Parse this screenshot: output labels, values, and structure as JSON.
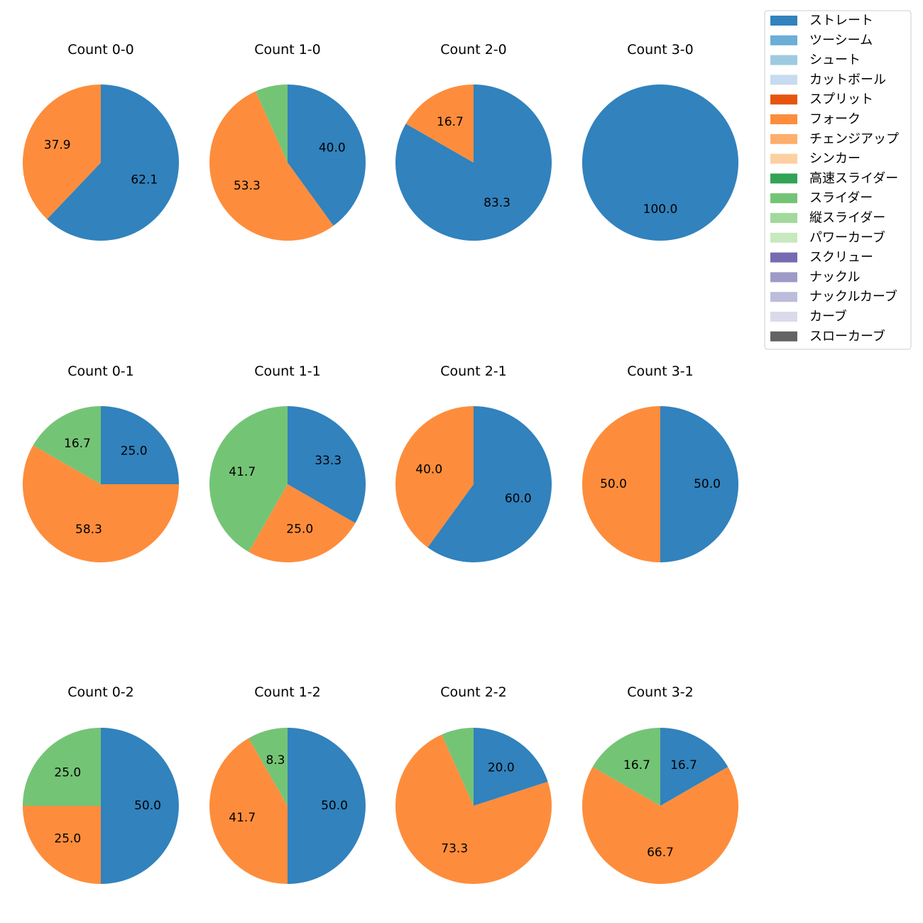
{
  "chart_data": {
    "type": "pie",
    "layout": "grid",
    "rows": 3,
    "cols": 4,
    "legend": {
      "location": "top-right",
      "entries": [
        {
          "name": "ストレート",
          "color": "#3182bd"
        },
        {
          "name": "ツーシーム",
          "color": "#6baed6"
        },
        {
          "name": "シュート",
          "color": "#9ecae1"
        },
        {
          "name": "カットボール",
          "color": "#c6dbef"
        },
        {
          "name": "スプリット",
          "color": "#e6550d"
        },
        {
          "name": "フォーク",
          "color": "#fd8d3c"
        },
        {
          "name": "チェンジアップ",
          "color": "#fdae6b"
        },
        {
          "name": "シンカー",
          "color": "#fdd0a2"
        },
        {
          "name": "高速スライダー",
          "color": "#31a354"
        },
        {
          "name": "スライダー",
          "color": "#74c476"
        },
        {
          "name": "縦スライダー",
          "color": "#a1d99b"
        },
        {
          "name": "パワーカーブ",
          "color": "#c7e9c0"
        },
        {
          "name": "スクリュー",
          "color": "#756bb1"
        },
        {
          "name": "ナックル",
          "color": "#9e9ac8"
        },
        {
          "name": "ナックルカーブ",
          "color": "#bcbddc"
        },
        {
          "name": "カーブ",
          "color": "#dadaeb"
        },
        {
          "name": "スローカーブ",
          "color": "#636363"
        }
      ]
    },
    "charts": [
      {
        "title": "Count 0-0",
        "slices": [
          {
            "pitch": "ストレート",
            "value": 62.1,
            "label": "62.1"
          },
          {
            "pitch": "フォーク",
            "value": 37.9,
            "label": "37.9"
          }
        ]
      },
      {
        "title": "Count 1-0",
        "slices": [
          {
            "pitch": "ストレート",
            "value": 40.0,
            "label": "40.0"
          },
          {
            "pitch": "フォーク",
            "value": 53.3,
            "label": "53.3"
          },
          {
            "pitch": "スライダー",
            "value": 6.7,
            "label": ""
          }
        ]
      },
      {
        "title": "Count 2-0",
        "slices": [
          {
            "pitch": "ストレート",
            "value": 83.3,
            "label": "83.3"
          },
          {
            "pitch": "フォーク",
            "value": 16.7,
            "label": "16.7"
          }
        ]
      },
      {
        "title": "Count 3-0",
        "slices": [
          {
            "pitch": "ストレート",
            "value": 100.0,
            "label": "100.0"
          }
        ]
      },
      {
        "title": "Count 0-1",
        "slices": [
          {
            "pitch": "ストレート",
            "value": 25.0,
            "label": "25.0"
          },
          {
            "pitch": "フォーク",
            "value": 58.3,
            "label": "58.3"
          },
          {
            "pitch": "スライダー",
            "value": 16.7,
            "label": "16.7"
          }
        ]
      },
      {
        "title": "Count 1-1",
        "slices": [
          {
            "pitch": "ストレート",
            "value": 33.3,
            "label": "33.3"
          },
          {
            "pitch": "フォーク",
            "value": 25.0,
            "label": "25.0"
          },
          {
            "pitch": "スライダー",
            "value": 41.7,
            "label": "41.7"
          }
        ]
      },
      {
        "title": "Count 2-1",
        "slices": [
          {
            "pitch": "ストレート",
            "value": 60.0,
            "label": "60.0"
          },
          {
            "pitch": "フォーク",
            "value": 40.0,
            "label": "40.0"
          }
        ]
      },
      {
        "title": "Count 3-1",
        "slices": [
          {
            "pitch": "ストレート",
            "value": 50.0,
            "label": "50.0"
          },
          {
            "pitch": "フォーク",
            "value": 50.0,
            "label": "50.0"
          }
        ]
      },
      {
        "title": "Count 0-2",
        "slices": [
          {
            "pitch": "ストレート",
            "value": 50.0,
            "label": "50.0"
          },
          {
            "pitch": "フォーク",
            "value": 25.0,
            "label": "25.0"
          },
          {
            "pitch": "スライダー",
            "value": 25.0,
            "label": "25.0"
          }
        ]
      },
      {
        "title": "Count 1-2",
        "slices": [
          {
            "pitch": "ストレート",
            "value": 50.0,
            "label": "50.0"
          },
          {
            "pitch": "フォーク",
            "value": 41.7,
            "label": "41.7"
          },
          {
            "pitch": "スライダー",
            "value": 8.3,
            "label": "8.3"
          }
        ]
      },
      {
        "title": "Count 2-2",
        "slices": [
          {
            "pitch": "ストレート",
            "value": 20.0,
            "label": "20.0"
          },
          {
            "pitch": "フォーク",
            "value": 73.3,
            "label": "73.3"
          },
          {
            "pitch": "スライダー",
            "value": 6.7,
            "label": ""
          }
        ]
      },
      {
        "title": "Count 3-2",
        "slices": [
          {
            "pitch": "ストレート",
            "value": 16.7,
            "label": "16.7"
          },
          {
            "pitch": "フォーク",
            "value": 66.7,
            "label": "66.7"
          },
          {
            "pitch": "スライダー",
            "value": 16.7,
            "label": "16.7"
          }
        ]
      }
    ]
  }
}
